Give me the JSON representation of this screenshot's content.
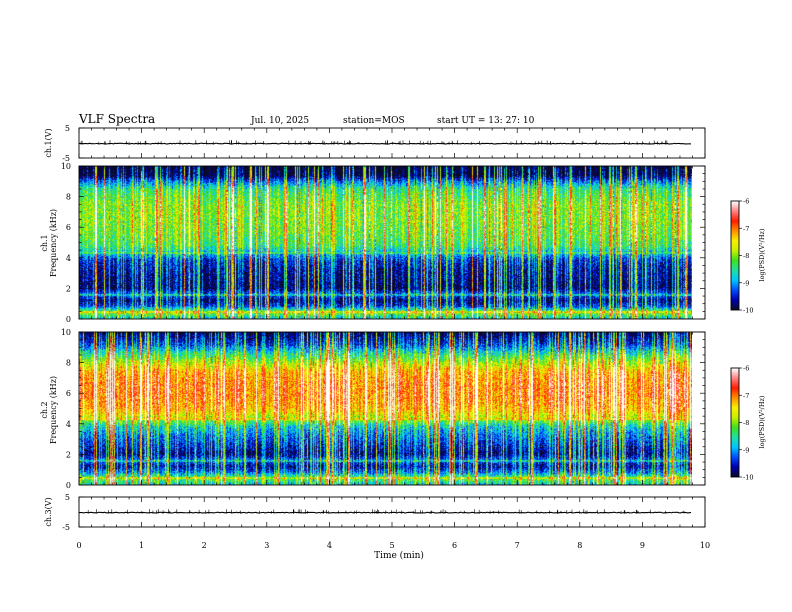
{
  "header": {
    "title": "VLF Spectra",
    "date": "Jul. 10, 2025",
    "station": "station=MOS",
    "start_ut": "start UT =  13: 27: 10"
  },
  "colors": {
    "colormap": [
      "#0a0a2a",
      "#0000b0",
      "#0050ff",
      "#00c8ff",
      "#20e0a0",
      "#40e020",
      "#c8f000",
      "#f8f000",
      "#ff9000",
      "#ff1c00",
      "#ff8080",
      "#ffffff"
    ]
  },
  "chart_data": [
    {
      "type": "line",
      "name": "ch1-waveform",
      "ylabel": "ch.1(V)",
      "ylim": [
        -5,
        5
      ],
      "yticks": [
        "5",
        "-5"
      ],
      "xlim": [
        0,
        10
      ],
      "approx_level": -0.2
    },
    {
      "type": "heatmap",
      "name": "ch1-spectrogram",
      "ylabel": "ch.1\nFrequency (kHz)",
      "ylabel_lines": [
        "ch.1",
        "Frequency (kHz)"
      ],
      "ylim": [
        0,
        10
      ],
      "yticks": [
        "0",
        "2",
        "4",
        "6",
        "8",
        "10"
      ],
      "xlim": [
        0,
        9.85
      ],
      "colorbar": {
        "label": "log(PSD)(V²/Hz)",
        "range": [
          -10,
          -6
        ],
        "ticks": [
          "-6",
          "-7",
          "-8",
          "-9",
          "-10"
        ]
      },
      "profile": [
        {
          "f": 0.0,
          "v": -8.6
        },
        {
          "f": 0.4,
          "v": -7.8
        },
        {
          "f": 0.8,
          "v": -9.2
        },
        {
          "f": 1.2,
          "v": -9.6
        },
        {
          "f": 1.6,
          "v": -9.0
        },
        {
          "f": 2.0,
          "v": -9.7
        },
        {
          "f": 2.6,
          "v": -9.6
        },
        {
          "f": 3.2,
          "v": -9.5
        },
        {
          "f": 3.8,
          "v": -9.3
        },
        {
          "f": 4.2,
          "v": -8.8
        },
        {
          "f": 4.8,
          "v": -8.2
        },
        {
          "f": 5.6,
          "v": -8.0
        },
        {
          "f": 6.5,
          "v": -7.9
        },
        {
          "f": 7.5,
          "v": -7.9
        },
        {
          "f": 8.5,
          "v": -8.3
        },
        {
          "f": 9.0,
          "v": -9.0
        },
        {
          "f": 9.4,
          "v": -9.8
        },
        {
          "f": 10.0,
          "v": -10.0
        }
      ]
    },
    {
      "type": "heatmap",
      "name": "ch2-spectrogram",
      "ylabel": "ch.2\nFrequency (kHz)",
      "ylabel_lines": [
        "ch.2",
        "Frequency (kHz)"
      ],
      "ylim": [
        0,
        10
      ],
      "yticks": [
        "0",
        "2",
        "4",
        "6",
        "8",
        "10"
      ],
      "xlim": [
        0,
        9.85
      ],
      "colorbar": {
        "label": "log(PSD)(V²/Hz)",
        "range": [
          -10,
          -6
        ],
        "ticks": [
          "-6",
          "-7",
          "-8",
          "-9",
          "-10"
        ]
      },
      "profile": [
        {
          "f": 0.0,
          "v": -8.6
        },
        {
          "f": 0.4,
          "v": -8.0
        },
        {
          "f": 0.8,
          "v": -9.0
        },
        {
          "f": 1.2,
          "v": -9.5
        },
        {
          "f": 1.6,
          "v": -9.0
        },
        {
          "f": 2.0,
          "v": -9.6
        },
        {
          "f": 2.6,
          "v": -9.3
        },
        {
          "f": 3.2,
          "v": -9.0
        },
        {
          "f": 3.8,
          "v": -8.6
        },
        {
          "f": 4.4,
          "v": -7.6
        },
        {
          "f": 5.0,
          "v": -7.1
        },
        {
          "f": 5.8,
          "v": -6.9
        },
        {
          "f": 6.6,
          "v": -6.9
        },
        {
          "f": 7.4,
          "v": -7.1
        },
        {
          "f": 8.0,
          "v": -7.7
        },
        {
          "f": 8.6,
          "v": -8.4
        },
        {
          "f": 9.2,
          "v": -9.2
        },
        {
          "f": 10.0,
          "v": -9.8
        }
      ]
    },
    {
      "type": "line",
      "name": "ch3-waveform",
      "ylabel": "ch.3(V)",
      "ylim": [
        -5,
        5
      ],
      "yticks": [
        "5",
        "-5"
      ],
      "xlim": [
        0,
        10
      ],
      "approx_level": -0.2
    }
  ],
  "xaxis": {
    "label": "Time (min)",
    "range": [
      0,
      10
    ],
    "ticks": [
      "0",
      "1",
      "2",
      "3",
      "4",
      "5",
      "6",
      "7",
      "8",
      "9",
      "10"
    ]
  }
}
